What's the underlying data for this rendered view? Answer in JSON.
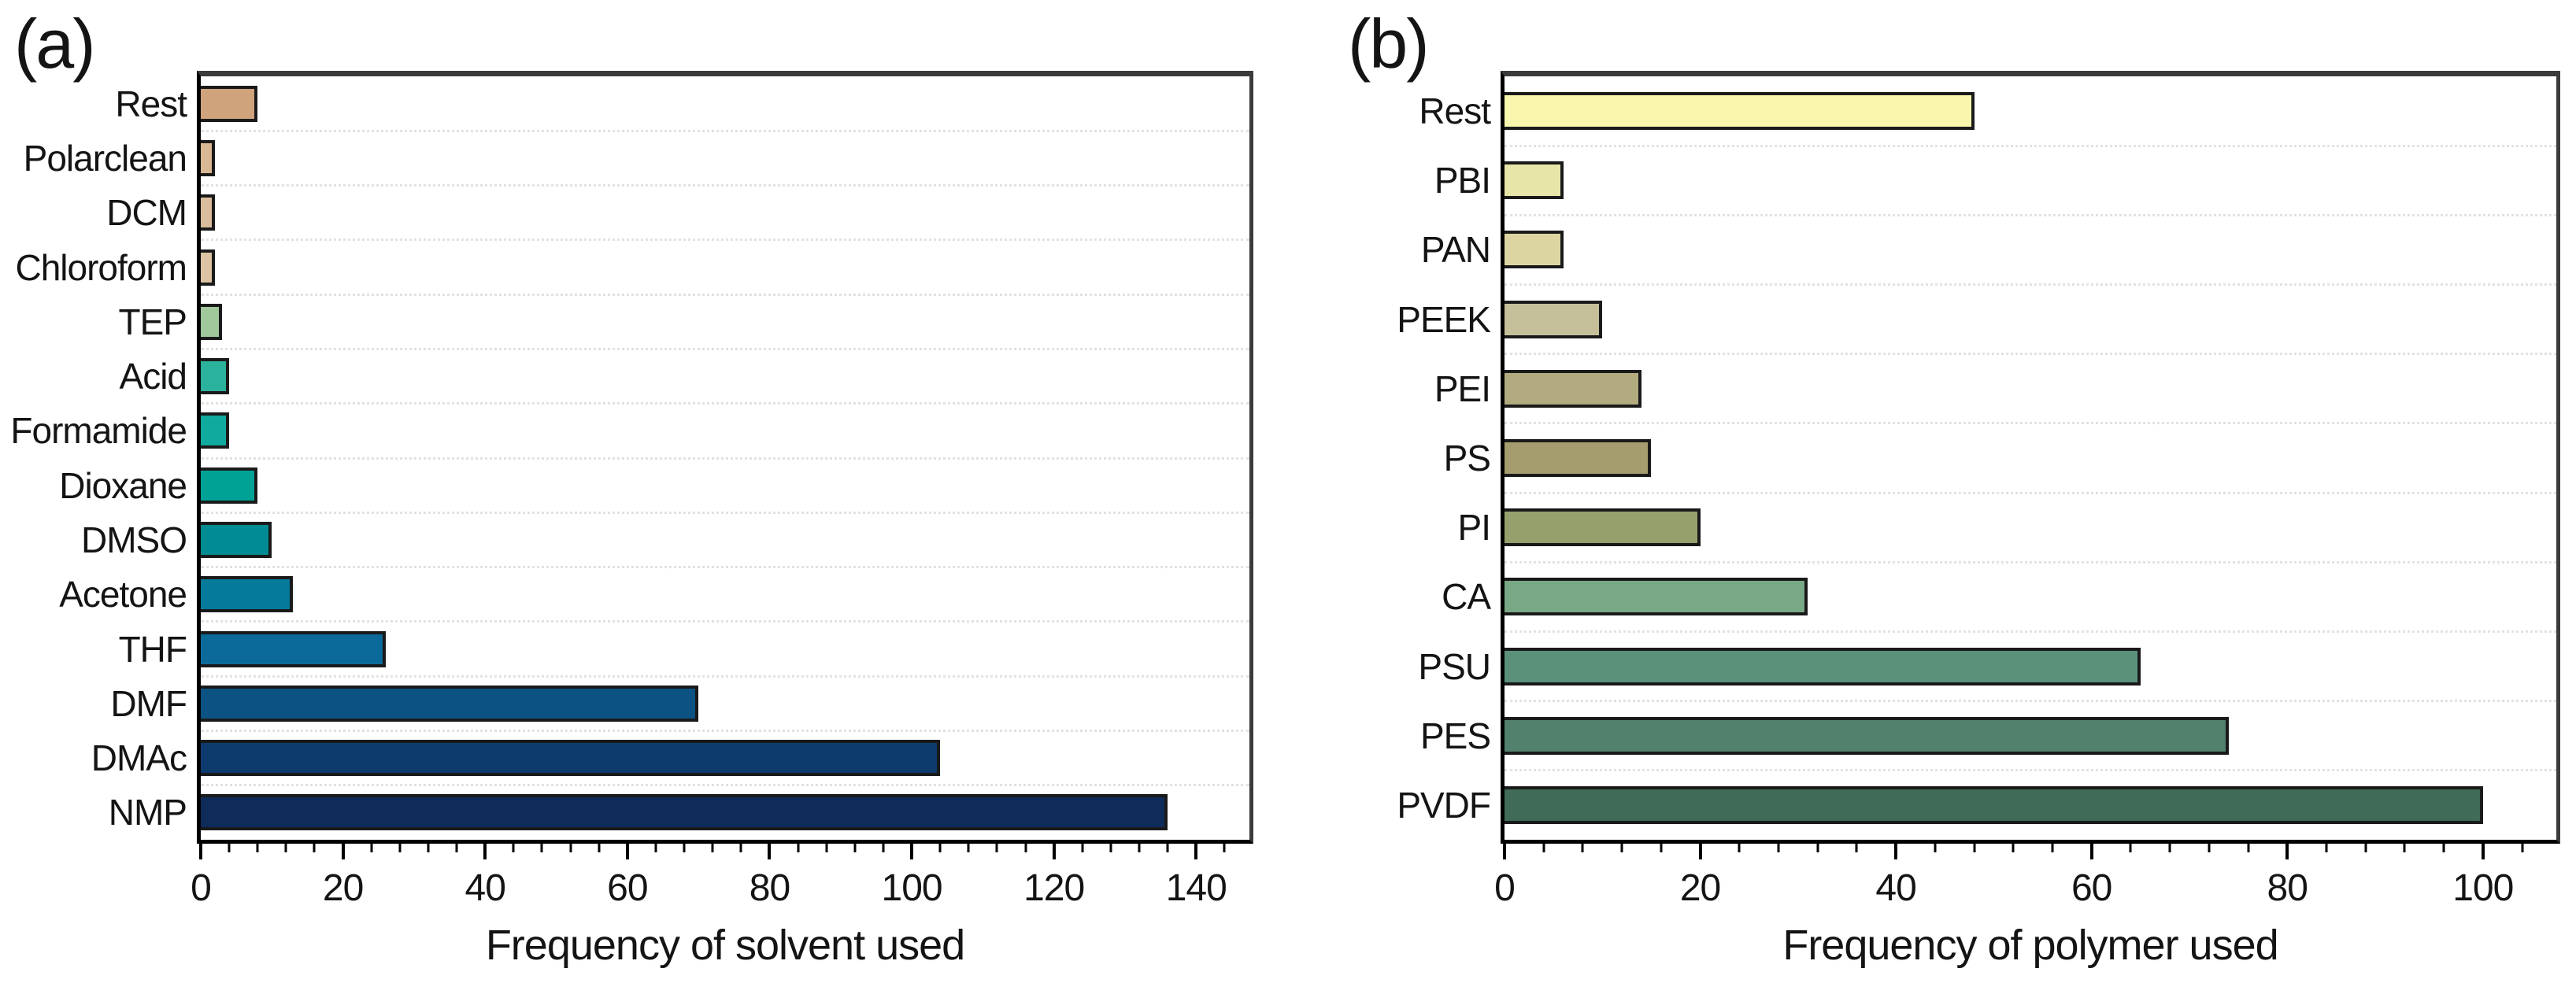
{
  "figure": {
    "background": "#ffffff",
    "frame_color": "#3b3b3b",
    "bar_border_color": "#1a1a1a",
    "grid_color": "#e2e2e2"
  },
  "chart_data": [
    {
      "panel_label": "(a)",
      "type": "bar",
      "orientation": "horizontal",
      "xlabel": "Frequency of solvent used",
      "categories": [
        "Rest",
        "Polarclean",
        "DCM",
        "Chloroform",
        "TEP",
        "Acid",
        "Formamide",
        "Dioxane",
        "DMSO",
        "Acetone",
        "THF",
        "DMF",
        "DMAc",
        "NMP"
      ],
      "values": [
        8,
        2,
        2,
        2,
        3,
        4,
        4,
        8,
        10,
        13,
        26,
        70,
        104,
        136
      ],
      "bar_colors": [
        "#cfa37c",
        "#d9b794",
        "#dabd9c",
        "#dbc3a3",
        "#a1c79d",
        "#2bb29d",
        "#10ab9e",
        "#00a295",
        "#008c92",
        "#067a9b",
        "#0b6a9a",
        "#0c5384",
        "#0d3b6e",
        "#0e2b5a"
      ],
      "xticks": [
        0,
        20,
        40,
        60,
        80,
        100,
        120,
        140
      ],
      "minor_tick_step": 4,
      "xlim": [
        0,
        147.5
      ],
      "grid": "dotted-horizontal",
      "legend": "none"
    },
    {
      "panel_label": "(b)",
      "type": "bar",
      "orientation": "horizontal",
      "xlabel": "Frequency of polymer used",
      "categories": [
        "Rest",
        "PBI",
        "PAN",
        "PEEK",
        "PEI",
        "PS",
        "PI",
        "CA",
        "PSU",
        "PES",
        "PVDF"
      ],
      "values": [
        48,
        6,
        6,
        10,
        14,
        15,
        20,
        31,
        65,
        74,
        100
      ],
      "bar_colors": [
        "#f9f7ae",
        "#e8e5a8",
        "#dcd5a2",
        "#c5c09a",
        "#b2ab80",
        "#a59d6d",
        "#96a06c",
        "#78a886",
        "#5b917b",
        "#52816d",
        "#3f6b58"
      ],
      "xticks": [
        0,
        20,
        40,
        60,
        80,
        100
      ],
      "minor_tick_step": 4,
      "xlim": [
        0,
        107.5
      ],
      "grid": "dotted-horizontal",
      "legend": "none"
    }
  ]
}
